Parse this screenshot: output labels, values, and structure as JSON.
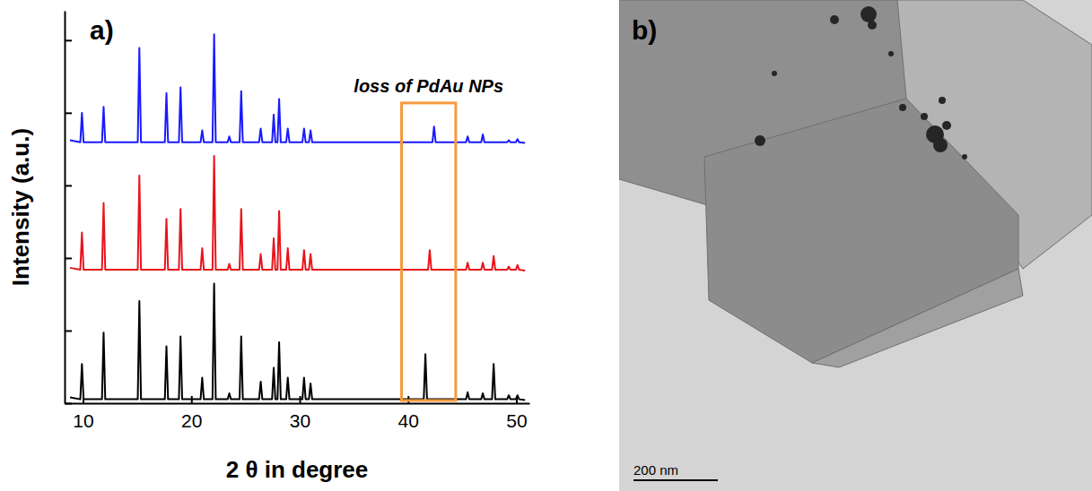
{
  "chart_data": {
    "type": "line",
    "label": "a)",
    "x_label": "2 θ in degree",
    "y_label": "Intensity (a.u.)",
    "xlim": [
      8.3,
      51.2
    ],
    "xticks": [
      10,
      20,
      30,
      40,
      50
    ],
    "ylim": [
      0,
      100
    ],
    "yticks": [
      0,
      18.5,
      37,
      55.5,
      74,
      92.5
    ],
    "tick_labels": "x",
    "grid": false,
    "x": [
      8.8,
      9.75,
      9.9,
      10.05,
      11.75,
      11.9,
      12.05,
      15.05,
      15.2,
      15.35,
      17.55,
      17.7,
      17.85,
      18.85,
      19.0,
      19.15,
      20.85,
      21.0,
      21.15,
      21.95,
      22.1,
      22.25,
      23.35,
      23.5,
      23.65,
      24.45,
      24.6,
      24.75,
      26.25,
      26.4,
      26.55,
      27.45,
      27.6,
      27.75,
      27.95,
      28.1,
      28.25,
      28.75,
      28.9,
      29.05,
      30.25,
      30.4,
      30.55,
      30.85,
      31.0,
      31.15,
      41.45,
      41.6,
      41.75,
      41.85,
      42.0,
      42.15,
      42.25,
      42.4,
      42.55,
      45.35,
      45.5,
      45.65,
      46.75,
      46.9,
      47.05,
      47.75,
      47.9,
      48.05,
      49.15,
      49.3,
      49.45,
      49.95,
      50.1,
      50.25,
      50.8
    ],
    "series": [
      {
        "color": "#1a1aff",
        "values": [
          67,
          66.5,
          74,
          66.5,
          66.5,
          75.5,
          66.5,
          66.5,
          90.5,
          66.5,
          66.5,
          79,
          66.5,
          66.5,
          80.5,
          66.5,
          66.5,
          69.5,
          66.5,
          66.5,
          94,
          66.5,
          66.5,
          68,
          66.5,
          66.5,
          79.5,
          66.5,
          66.5,
          70,
          66.5,
          66.5,
          73.5,
          66.5,
          66.5,
          77.5,
          66.5,
          66.5,
          70,
          66.5,
          66.5,
          70,
          66.5,
          66.5,
          69.5,
          66.5,
          66.5,
          66.5,
          66.5,
          66.5,
          66.5,
          66.5,
          66.5,
          70.5,
          66.5,
          66.5,
          68,
          66.5,
          66.5,
          68.5,
          66.5,
          66.5,
          66.5,
          66.5,
          66.5,
          67,
          66.5,
          66.5,
          67.3,
          66.5,
          66.3
        ]
      },
      {
        "color": "#e8141b",
        "values": [
          34.5,
          34,
          43.5,
          34,
          34,
          51,
          34,
          34,
          58,
          34,
          34,
          47,
          34,
          34,
          49.5,
          34,
          34,
          39.5,
          34,
          34,
          63,
          34,
          34,
          35.5,
          34,
          34,
          49.5,
          34,
          34,
          38,
          34,
          34,
          42,
          34,
          34,
          49,
          34,
          34,
          39.5,
          34,
          34,
          39,
          34,
          34,
          38,
          34,
          34,
          34,
          34,
          34,
          39,
          34,
          34,
          34,
          34,
          34,
          35.8,
          34,
          34,
          35.8,
          34,
          34,
          37.5,
          34,
          34,
          34.8,
          34,
          34,
          35.2,
          34,
          33.8
        ]
      },
      {
        "color": "#000000",
        "values": [
          1.5,
          1,
          10,
          1,
          1,
          18,
          1,
          1,
          26,
          1,
          1,
          14.5,
          1,
          1,
          17,
          1,
          1,
          6.5,
          1,
          1,
          30.5,
          1,
          1,
          2.5,
          1,
          1,
          17,
          1,
          1,
          5.5,
          1,
          1,
          9,
          1,
          1,
          15.5,
          1,
          1,
          6.5,
          1,
          1,
          6.5,
          1,
          1,
          5,
          1,
          1,
          12.5,
          1,
          1,
          1,
          1,
          1,
          1,
          1,
          1,
          2.8,
          1,
          1,
          2.5,
          1,
          1,
          10,
          1,
          1,
          2,
          1,
          1,
          2,
          1,
          0.8
        ]
      }
    ],
    "annotations": [
      {
        "text": "loss of PdAu NPs",
        "color": "#f59a3c",
        "box": {
          "x": [
            39.4,
            44.4
          ],
          "y": [
            0.7,
            76.5
          ]
        }
      }
    ]
  },
  "image": {
    "label": "b)",
    "scale_bar": "200 nm"
  }
}
